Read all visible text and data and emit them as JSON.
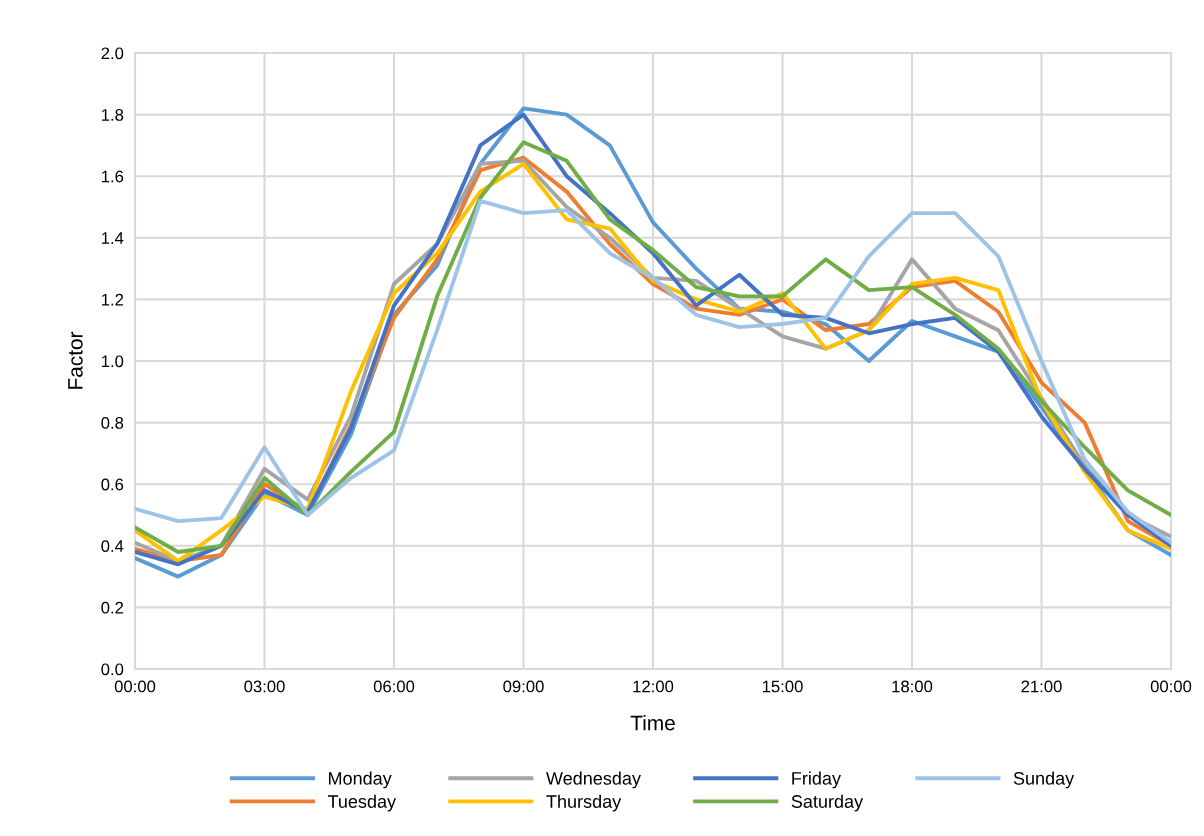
{
  "chart_data": {
    "type": "line",
    "xlabel": "Time",
    "ylabel": "Factor",
    "x": [
      0,
      1,
      2,
      3,
      4,
      5,
      6,
      7,
      8,
      9,
      10,
      11,
      12,
      13,
      14,
      15,
      16,
      17,
      18,
      19,
      20,
      21,
      22,
      23,
      24
    ],
    "xlim": [
      0,
      24
    ],
    "xticks": [
      {
        "value": 0,
        "label": "00:00"
      },
      {
        "value": 3,
        "label": "03:00"
      },
      {
        "value": 6,
        "label": "06:00"
      },
      {
        "value": 9,
        "label": "09:00"
      },
      {
        "value": 12,
        "label": "12:00"
      },
      {
        "value": 15,
        "label": "15:00"
      },
      {
        "value": 18,
        "label": "18:00"
      },
      {
        "value": 21,
        "label": "21:00"
      },
      {
        "value": 24,
        "label": "00:00"
      }
    ],
    "ylim": [
      0,
      2
    ],
    "yticks": [
      {
        "value": 0,
        "label": "0.0"
      },
      {
        "value": 0.2,
        "label": "0.2"
      },
      {
        "value": 0.4,
        "label": "0.4"
      },
      {
        "value": 0.6,
        "label": "0.6"
      },
      {
        "value": 0.8,
        "label": "0.8"
      },
      {
        "value": 1.0,
        "label": "1.0"
      },
      {
        "value": 1.2,
        "label": "1.2"
      },
      {
        "value": 1.4,
        "label": "1.4"
      },
      {
        "value": 1.6,
        "label": "1.6"
      },
      {
        "value": 1.8,
        "label": "1.8"
      },
      {
        "value": 2.0,
        "label": "2.0"
      }
    ],
    "grid": true,
    "legend": "bottom",
    "marker": "none",
    "line_style": "solid",
    "series": [
      {
        "name": "Monday",
        "color": "#5b9bd5",
        "values": [
          0.36,
          0.3,
          0.37,
          0.57,
          0.5,
          0.76,
          1.15,
          1.31,
          1.64,
          1.82,
          1.8,
          1.7,
          1.45,
          1.3,
          1.17,
          1.16,
          1.12,
          1.0,
          1.13,
          1.08,
          1.03,
          0.85,
          0.65,
          0.45,
          0.37
        ]
      },
      {
        "name": "Tuesday",
        "color": "#ed7d31",
        "values": [
          0.39,
          0.35,
          0.37,
          0.6,
          0.51,
          0.79,
          1.14,
          1.33,
          1.62,
          1.66,
          1.55,
          1.38,
          1.25,
          1.17,
          1.15,
          1.2,
          1.1,
          1.12,
          1.24,
          1.26,
          1.16,
          0.93,
          0.8,
          0.48,
          0.4
        ]
      },
      {
        "name": "Wednesday",
        "color": "#a5a5a5",
        "values": [
          0.41,
          0.35,
          0.4,
          0.65,
          0.55,
          0.82,
          1.25,
          1.38,
          1.64,
          1.65,
          1.5,
          1.4,
          1.27,
          1.26,
          1.17,
          1.08,
          1.04,
          1.1,
          1.33,
          1.17,
          1.1,
          0.88,
          0.66,
          0.5,
          0.43
        ]
      },
      {
        "name": "Thursday",
        "color": "#ffc000",
        "values": [
          0.45,
          0.35,
          0.45,
          0.56,
          0.52,
          0.9,
          1.22,
          1.35,
          1.55,
          1.64,
          1.46,
          1.43,
          1.26,
          1.2,
          1.16,
          1.22,
          1.04,
          1.1,
          1.25,
          1.27,
          1.23,
          0.87,
          0.64,
          0.45,
          0.39
        ]
      },
      {
        "name": "Friday",
        "color": "#4472c4",
        "values": [
          0.38,
          0.34,
          0.4,
          0.58,
          0.51,
          0.78,
          1.18,
          1.38,
          1.7,
          1.8,
          1.6,
          1.48,
          1.35,
          1.18,
          1.28,
          1.15,
          1.14,
          1.09,
          1.12,
          1.14,
          1.03,
          0.82,
          0.65,
          0.5,
          0.4
        ]
      },
      {
        "name": "Saturday",
        "color": "#70ad47",
        "values": [
          0.46,
          0.38,
          0.4,
          0.62,
          0.5,
          0.64,
          0.77,
          1.21,
          1.53,
          1.71,
          1.65,
          1.46,
          1.36,
          1.24,
          1.21,
          1.21,
          1.33,
          1.23,
          1.24,
          1.15,
          1.04,
          0.87,
          0.72,
          0.58,
          0.5
        ]
      },
      {
        "name": "Sunday",
        "color": "#9dc3e6",
        "values": [
          0.52,
          0.48,
          0.49,
          0.72,
          0.5,
          0.62,
          0.71,
          1.1,
          1.52,
          1.48,
          1.49,
          1.35,
          1.27,
          1.15,
          1.11,
          1.12,
          1.14,
          1.34,
          1.48,
          1.48,
          1.34,
          1.0,
          0.68,
          0.51,
          0.41
        ]
      }
    ]
  }
}
